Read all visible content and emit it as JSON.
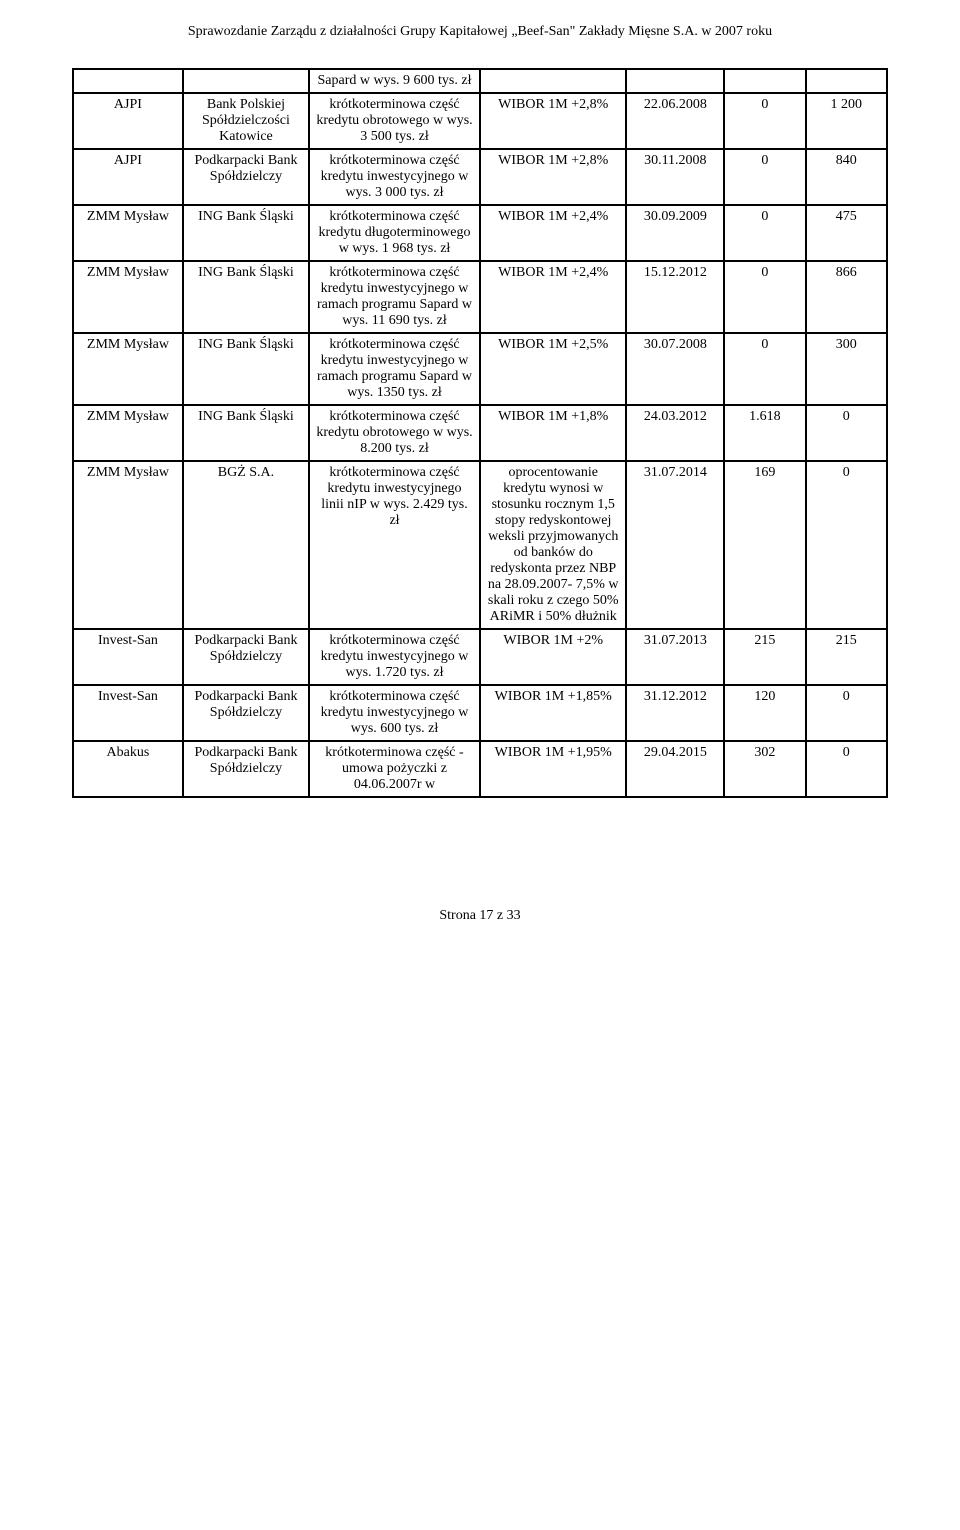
{
  "header": "Sprawozdanie Zarządu z działalności Grupy Kapitałowej „Beef-San\" Zakłady Mięsne S.A. w 2007 roku",
  "footer": "Strona 17 z 33",
  "table": {
    "rows": [
      {
        "c1": "",
        "c2": "",
        "c3": "Sapard w wys. 9 600 tys. zł",
        "c4": "",
        "c5": "",
        "c6": "",
        "c7": ""
      },
      {
        "c1": "AJPI",
        "c2": "Bank Polskiej Spółdzielczości Katowice",
        "c3": "krótkoterminowa część kredytu obrotowego w wys. 3 500 tys. zł",
        "c4": "WIBOR 1M +2,8%",
        "c5": "22.06.2008",
        "c6": "0",
        "c7": "1 200"
      },
      {
        "c1": "AJPI",
        "c2": "Podkarpacki Bank Spółdzielczy",
        "c3": "krótkoterminowa część kredytu inwestycyjnego w wys. 3 000 tys. zł",
        "c4": "WIBOR 1M +2,8%",
        "c5": "30.11.2008",
        "c6": "0",
        "c7": "840"
      },
      {
        "c1": "ZMM Mysław",
        "c2": "ING Bank Śląski",
        "c3": "krótkoterminowa część kredytu długoterminowego w wys. 1 968 tys. zł",
        "c4": "WIBOR 1M +2,4%",
        "c5": "30.09.2009",
        "c6": "0",
        "c7": "475"
      },
      {
        "c1": "ZMM Mysław",
        "c2": "ING Bank Śląski",
        "c3": "krótkoterminowa część kredytu inwestycyjnego w ramach programu Sapard w wys. 11 690 tys. zł",
        "c4": "WIBOR 1M +2,4%",
        "c5": "15.12.2012",
        "c6": "0",
        "c7": "866"
      },
      {
        "c1": "ZMM Mysław",
        "c2": "ING Bank Śląski",
        "c3": "krótkoterminowa część kredytu inwestycyjnego w ramach programu Sapard w wys. 1350 tys. zł",
        "c4": "WIBOR 1M +2,5%",
        "c5": "30.07.2008",
        "c6": "0",
        "c7": "300"
      },
      {
        "c1": "ZMM Mysław",
        "c2": "ING Bank Śląski",
        "c3": "krótkoterminowa część kredytu obrotowego w wys. 8.200 tys. zł",
        "c4": "WIBOR 1M +1,8%",
        "c5": "24.03.2012",
        "c6": "1.618",
        "c7": "0"
      },
      {
        "c1": "ZMM Mysław",
        "c2": "BGŻ S.A.",
        "c3": "krótkoterminowa część kredytu inwestycyjnego linii nIP w wys. 2.429 tys. zł",
        "c4": "oprocentowanie kredytu wynosi w stosunku rocznym 1,5 stopy redyskontowej weksli przyjmowanych od banków do redyskonta przez NBP na 28.09.2007- 7,5% w skali roku z czego 50% ARiMR i 50% dłużnik",
        "c5": "31.07.2014",
        "c6": "169",
        "c7": "0"
      },
      {
        "c1": "Invest-San",
        "c2": "Podkarpacki Bank Spółdzielczy",
        "c3": "krótkoterminowa część kredytu inwestycyjnego w wys. 1.720 tys. zł",
        "c4": "WIBOR 1M +2%",
        "c5": "31.07.2013",
        "c6": "215",
        "c7": "215"
      },
      {
        "c1": "Invest-San",
        "c2": "Podkarpacki Bank Spółdzielczy",
        "c3": "krótkoterminowa część kredytu inwestycyjnego w wys. 600 tys. zł",
        "c4": "WIBOR 1M +1,85%",
        "c5": "31.12.2012",
        "c6": "120",
        "c7": "0"
      },
      {
        "c1": "Abakus",
        "c2": "Podkarpacki Bank Spółdzielczy",
        "c3": "krótkoterminowa część -umowa pożyczki z 04.06.2007r w",
        "c4": "WIBOR 1M +1,95%",
        "c5": "29.04.2015",
        "c6": "302",
        "c7": "0"
      }
    ]
  }
}
